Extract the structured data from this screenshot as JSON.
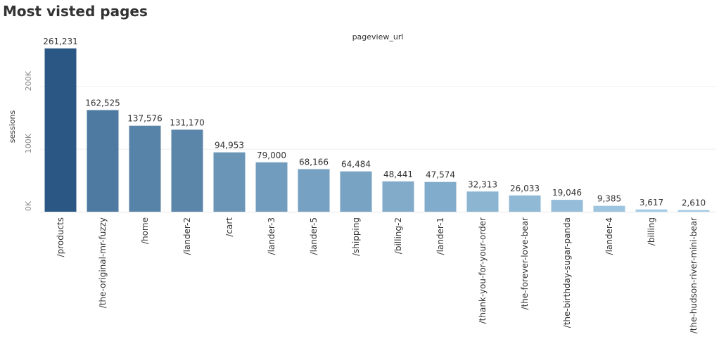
{
  "page": {
    "title": "Most visted pages"
  },
  "chart_data": {
    "type": "bar",
    "title": "Most visted pages",
    "column_header": "pageview_url",
    "xlabel": "",
    "ylabel": "sessions",
    "categories": [
      "/products",
      "/the-original-mr-fuzzy",
      "/home",
      "/lander-2",
      "/cart",
      "/lander-3",
      "/lander-5",
      "/shipping",
      "/billing-2",
      "/lander-1",
      "/thank-you-for-your-order",
      "/the-forever-love-bear",
      "/the-birthday-sugar-panda",
      "/lander-4",
      "/billing",
      "/the-hudson-river-mini-bear"
    ],
    "values": [
      261231,
      162525,
      137576,
      131170,
      94953,
      79000,
      68166,
      64484,
      48441,
      47574,
      32313,
      26033,
      19046,
      9385,
      3617,
      2610
    ],
    "value_labels": [
      "261,231",
      "162,525",
      "137,576",
      "131,170",
      "94,953",
      "79,000",
      "68,166",
      "64,484",
      "48,441",
      "47,574",
      "32,313",
      "26,033",
      "19,046",
      "9,385",
      "3,617",
      "2,610"
    ],
    "ylim": [
      0,
      270000
    ],
    "yticks": [
      0,
      100000,
      200000
    ],
    "ytick_labels": [
      "0K",
      "100K",
      "200K"
    ],
    "grid": true,
    "legend": "none",
    "color_scale": {
      "low": "#a9d1ea",
      "high": "#2a5783"
    }
  }
}
